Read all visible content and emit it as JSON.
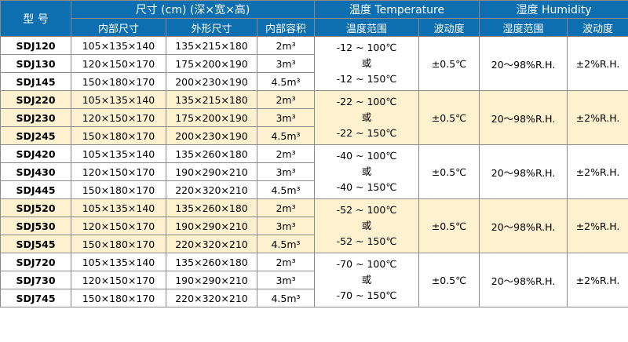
{
  "header": {
    "model": "型 号",
    "size_group": "尺寸 (cm) (深×宽×高)",
    "temp_group": "温度 Temperature",
    "humid_group": "湿度 Humidity",
    "inner_size": "内部尺寸",
    "outer_size": "外形尺寸",
    "volume": "内部容积",
    "temp_range": "温度范围",
    "temp_fluct": "波动度",
    "humid_range": "湿度范围",
    "humid_fluct": "波动度"
  },
  "groups": [
    {
      "temp_range": {
        "upper": "-12 ~ 100℃",
        "or": "或",
        "lower": "-12 ~ 150℃"
      },
      "temp_fluct": "±0.5℃",
      "humid_range": "20〜98%R.H.",
      "humid_fluct": "±2%R.H.",
      "rows": [
        {
          "model": "SDJ120",
          "inner": "105×135×140",
          "outer": "135×215×180",
          "volume": "2m³"
        },
        {
          "model": "SDJ130",
          "inner": "120×150×170",
          "outer": "175×200×190",
          "volume": "3m³"
        },
        {
          "model": "SDJ145",
          "inner": "150×180×170",
          "outer": "200×230×190",
          "volume": "4.5m³"
        }
      ]
    },
    {
      "temp_range": {
        "upper": "-22 ~ 100℃",
        "or": "或",
        "lower": "-22 ~ 150℃"
      },
      "temp_fluct": "±0.5℃",
      "humid_range": "20〜98%R.H.",
      "humid_fluct": "±2%R.H.",
      "rows": [
        {
          "model": "SDJ220",
          "inner": "105×135×140",
          "outer": "135×215×180",
          "volume": "2m³"
        },
        {
          "model": "SDJ230",
          "inner": "120×150×170",
          "outer": "175×200×190",
          "volume": "3m³"
        },
        {
          "model": "SDJ245",
          "inner": "150×180×170",
          "outer": "200×230×190",
          "volume": "4.5m³"
        }
      ]
    },
    {
      "temp_range": {
        "upper": "-40 ~ 100℃",
        "or": "或",
        "lower": "-40 ~ 150℃"
      },
      "temp_fluct": "±0.5℃",
      "humid_range": "20〜98%R.H.",
      "humid_fluct": "±2%R.H.",
      "rows": [
        {
          "model": "SDJ420",
          "inner": "105×135×140",
          "outer": "135×260×180",
          "volume": "2m³"
        },
        {
          "model": "SDJ430",
          "inner": "120×150×170",
          "outer": "190×290×210",
          "volume": "3m³"
        },
        {
          "model": "SDJ445",
          "inner": "150×180×170",
          "outer": "220×320×210",
          "volume": "4.5m³"
        }
      ]
    },
    {
      "temp_range": {
        "upper": "-52 ~ 100℃",
        "or": "或",
        "lower": "-52 ~ 150℃"
      },
      "temp_fluct": "±0.5℃",
      "humid_range": "20〜98%R.H.",
      "humid_fluct": "±2%R.H.",
      "rows": [
        {
          "model": "SDJ520",
          "inner": "105×135×140",
          "outer": "135×260×180",
          "volume": "2m³"
        },
        {
          "model": "SDJ530",
          "inner": "120×150×170",
          "outer": "190×290×210",
          "volume": "3m³"
        },
        {
          "model": "SDJ545",
          "inner": "150×180×170",
          "outer": "220×320×210",
          "volume": "4.5m³"
        }
      ]
    },
    {
      "temp_range": {
        "upper": "-70 ~ 100℃",
        "or": "或",
        "lower": "-70 ~ 150℃"
      },
      "temp_fluct": "±0.5℃",
      "humid_range": "20〜98%R.H.",
      "humid_fluct": "±2%R.H.",
      "rows": [
        {
          "model": "SDJ720",
          "inner": "105×135×140",
          "outer": "135×260×180",
          "volume": "2m³"
        },
        {
          "model": "SDJ730",
          "inner": "120×150×170",
          "outer": "190×290×210",
          "volume": "3m³"
        },
        {
          "model": "SDJ745",
          "inner": "150×180×170",
          "outer": "220×320×210",
          "volume": "4.5m³"
        }
      ]
    }
  ],
  "colors": {
    "header_bg": "#0d6eb0",
    "header_text": "#ffffff",
    "band_bg": "#fdf1cf",
    "border": "#8a8a8a"
  }
}
